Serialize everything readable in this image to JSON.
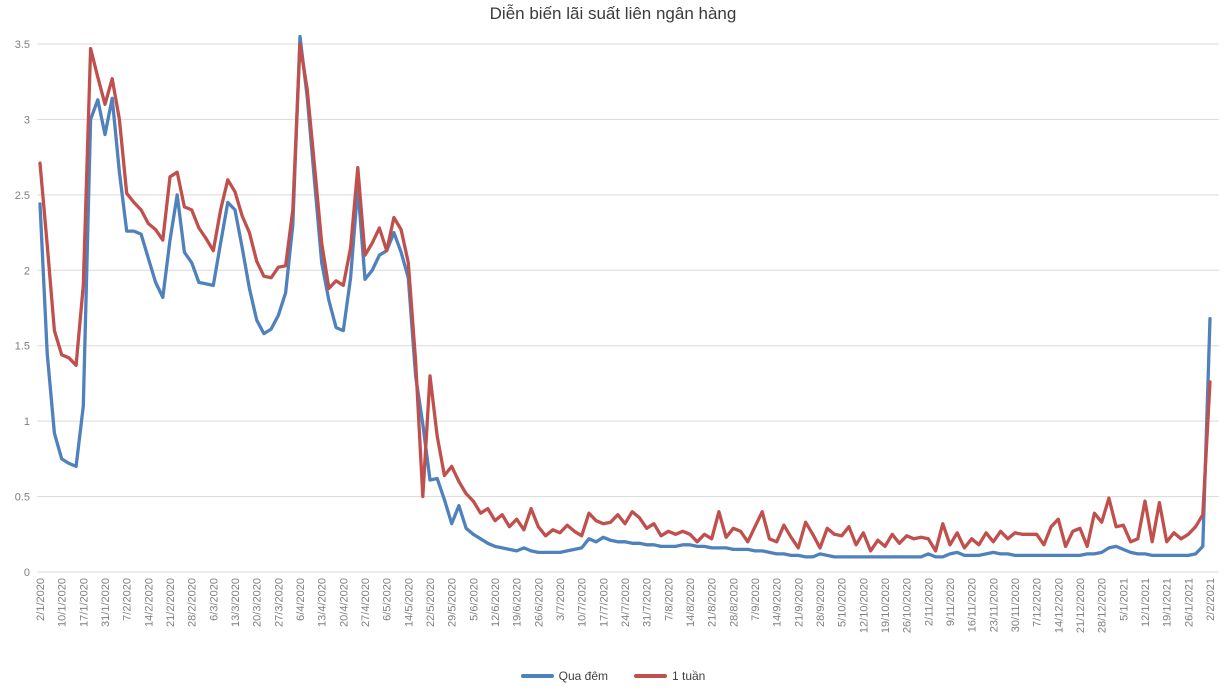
{
  "chart": {
    "title": "Diễn biến lãi suất liên ngân hàng"
  },
  "chart_data": {
    "type": "line",
    "title": "Diễn biến lãi suất liên ngân hàng",
    "xlabel": "",
    "ylabel": "",
    "ylim": [
      0,
      3.5
    ],
    "grid": true,
    "legend_position": "bottom",
    "grid_color": "#d9d9d9",
    "tick_label_color": "#7f7f7f",
    "y_tick_labels": [
      "0",
      "0.5",
      "1",
      "1.5",
      "2",
      "2.5",
      "3",
      "3.5"
    ],
    "x_tick_labels": [
      "2/1/2020",
      "10/1/2020",
      "17/1/2020",
      "31/1/2020",
      "7/2/2020",
      "14/2/2020",
      "21/2/2020",
      "28/2/2020",
      "6/3/2020",
      "13/3/2020",
      "20/3/2020",
      "27/3/2020",
      "6/4/2020",
      "13/4/2020",
      "20/4/2020",
      "27/4/2020",
      "6/5/2020",
      "14/5/2020",
      "22/5/2020",
      "29/5/2020",
      "5/6/2020",
      "12/6/2020",
      "19/6/2020",
      "26/6/2020",
      "3/7/2020",
      "10/7/2020",
      "17/7/2020",
      "24/7/2020",
      "31/7/2020",
      "7/8/2020",
      "14/8/2020",
      "21/8/2020",
      "28/8/2020",
      "7/9/2020",
      "14/9/2020",
      "21/9/2020",
      "28/9/2020",
      "5/10/2020",
      "12/10/2020",
      "19/10/2020",
      "26/10/2020",
      "2/11/2020",
      "9/11/2020",
      "16/11/2020",
      "23/11/2020",
      "30/11/2020",
      "7/12/2020",
      "14/12/2020",
      "21/12/2020",
      "28/12/2020",
      "5/1/2021",
      "12/1/2021",
      "19/1/2021",
      "26/1/2021",
      "2/2/2021"
    ],
    "points_per_label_interval": 3,
    "series": [
      {
        "name": "Qua đêm",
        "color": "#4f81bd",
        "values": [
          2.44,
          1.45,
          0.92,
          0.75,
          0.72,
          0.7,
          1.1,
          3.0,
          3.13,
          2.9,
          3.14,
          2.65,
          2.26,
          2.26,
          2.24,
          2.08,
          1.92,
          1.82,
          2.2,
          2.5,
          2.12,
          2.05,
          1.92,
          1.91,
          1.9,
          2.18,
          2.45,
          2.4,
          2.15,
          1.88,
          1.67,
          1.58,
          1.61,
          1.7,
          1.85,
          2.3,
          3.55,
          3.15,
          2.6,
          2.05,
          1.8,
          1.62,
          1.6,
          1.95,
          2.55,
          1.94,
          2.0,
          2.1,
          2.13,
          2.25,
          2.12,
          1.95,
          1.3,
          0.98,
          0.61,
          0.62,
          0.48,
          0.32,
          0.44,
          0.29,
          0.25,
          0.22,
          0.19,
          0.17,
          0.16,
          0.15,
          0.14,
          0.16,
          0.14,
          0.13,
          0.13,
          0.13,
          0.13,
          0.14,
          0.15,
          0.16,
          0.22,
          0.2,
          0.23,
          0.21,
          0.2,
          0.2,
          0.19,
          0.19,
          0.18,
          0.18,
          0.17,
          0.17,
          0.17,
          0.18,
          0.18,
          0.17,
          0.17,
          0.16,
          0.16,
          0.16,
          0.15,
          0.15,
          0.15,
          0.14,
          0.14,
          0.13,
          0.12,
          0.12,
          0.11,
          0.11,
          0.1,
          0.1,
          0.12,
          0.11,
          0.1,
          0.1,
          0.1,
          0.1,
          0.1,
          0.1,
          0.1,
          0.1,
          0.1,
          0.1,
          0.1,
          0.1,
          0.1,
          0.12,
          0.1,
          0.1,
          0.12,
          0.13,
          0.11,
          0.11,
          0.11,
          0.12,
          0.13,
          0.12,
          0.12,
          0.11,
          0.11,
          0.11,
          0.11,
          0.11,
          0.11,
          0.11,
          0.11,
          0.11,
          0.11,
          0.12,
          0.12,
          0.13,
          0.16,
          0.17,
          0.15,
          0.13,
          0.12,
          0.12,
          0.11,
          0.11,
          0.11,
          0.11,
          0.11,
          0.11,
          0.12,
          0.17,
          1.68
        ]
      },
      {
        "name": "1 tuần",
        "color": "#c0504d",
        "values": [
          2.71,
          2.17,
          1.6,
          1.44,
          1.42,
          1.37,
          1.9,
          3.47,
          3.28,
          3.1,
          3.27,
          3.0,
          2.51,
          2.45,
          2.4,
          2.31,
          2.27,
          2.2,
          2.62,
          2.65,
          2.42,
          2.4,
          2.28,
          2.21,
          2.13,
          2.4,
          2.6,
          2.52,
          2.36,
          2.25,
          2.06,
          1.96,
          1.95,
          2.02,
          2.03,
          2.4,
          3.5,
          3.2,
          2.7,
          2.18,
          1.88,
          1.93,
          1.9,
          2.15,
          2.68,
          2.1,
          2.18,
          2.28,
          2.13,
          2.35,
          2.27,
          2.05,
          1.4,
          0.5,
          1.3,
          0.9,
          0.64,
          0.7,
          0.6,
          0.52,
          0.47,
          0.39,
          0.42,
          0.34,
          0.38,
          0.3,
          0.35,
          0.28,
          0.42,
          0.3,
          0.24,
          0.28,
          0.26,
          0.31,
          0.27,
          0.24,
          0.39,
          0.34,
          0.32,
          0.33,
          0.38,
          0.32,
          0.4,
          0.36,
          0.29,
          0.32,
          0.24,
          0.27,
          0.25,
          0.27,
          0.25,
          0.2,
          0.25,
          0.22,
          0.4,
          0.23,
          0.29,
          0.27,
          0.2,
          0.3,
          0.4,
          0.22,
          0.2,
          0.31,
          0.23,
          0.16,
          0.33,
          0.25,
          0.16,
          0.29,
          0.25,
          0.24,
          0.3,
          0.18,
          0.26,
          0.14,
          0.21,
          0.17,
          0.25,
          0.19,
          0.24,
          0.22,
          0.23,
          0.22,
          0.14,
          0.32,
          0.18,
          0.26,
          0.16,
          0.22,
          0.18,
          0.26,
          0.2,
          0.27,
          0.22,
          0.26,
          0.25,
          0.25,
          0.25,
          0.18,
          0.3,
          0.35,
          0.17,
          0.27,
          0.29,
          0.17,
          0.39,
          0.33,
          0.49,
          0.3,
          0.31,
          0.2,
          0.22,
          0.47,
          0.2,
          0.46,
          0.2,
          0.26,
          0.22,
          0.25,
          0.3,
          0.38,
          1.26
        ]
      }
    ]
  }
}
